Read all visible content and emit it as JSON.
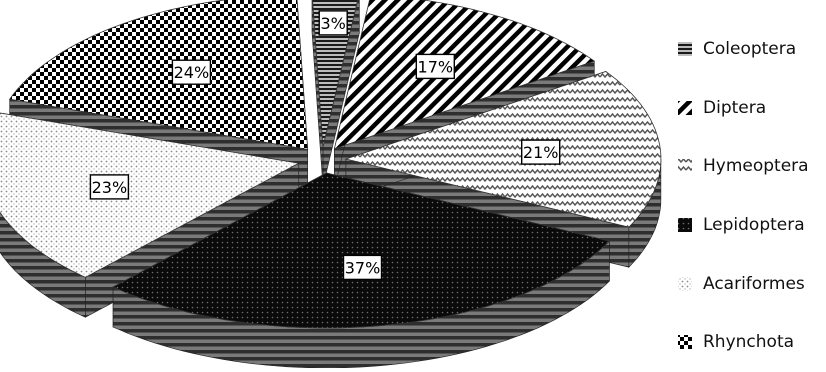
{
  "chart_data": {
    "type": "pie",
    "style": "3d-exploded",
    "categories": [
      "Coleoptera",
      "Diptera",
      "Hymeoptera",
      "Lepidoptera",
      "Acariformes",
      "Rhynchota"
    ],
    "values": [
      3,
      17,
      21,
      37,
      23,
      24
    ],
    "labels": [
      "3%",
      "17%",
      "21%",
      "37%",
      "23%",
      "24%"
    ],
    "unit": "%",
    "legend_position": "right",
    "legend": [
      {
        "label": "Coleoptera",
        "pattern": "horizontal-lines"
      },
      {
        "label": "Diptera",
        "pattern": "diagonal-stripes"
      },
      {
        "label": "Hymeoptera",
        "pattern": "zigzag"
      },
      {
        "label": "Lepidoptera",
        "pattern": "dark-dots"
      },
      {
        "label": "Acariformes",
        "pattern": "light-dots"
      },
      {
        "label": "Rhynchota",
        "pattern": "checkerboard"
      }
    ],
    "colors": {
      "ink": "#000000",
      "paper": "#ffffff",
      "side": "#6a6a6a"
    }
  }
}
